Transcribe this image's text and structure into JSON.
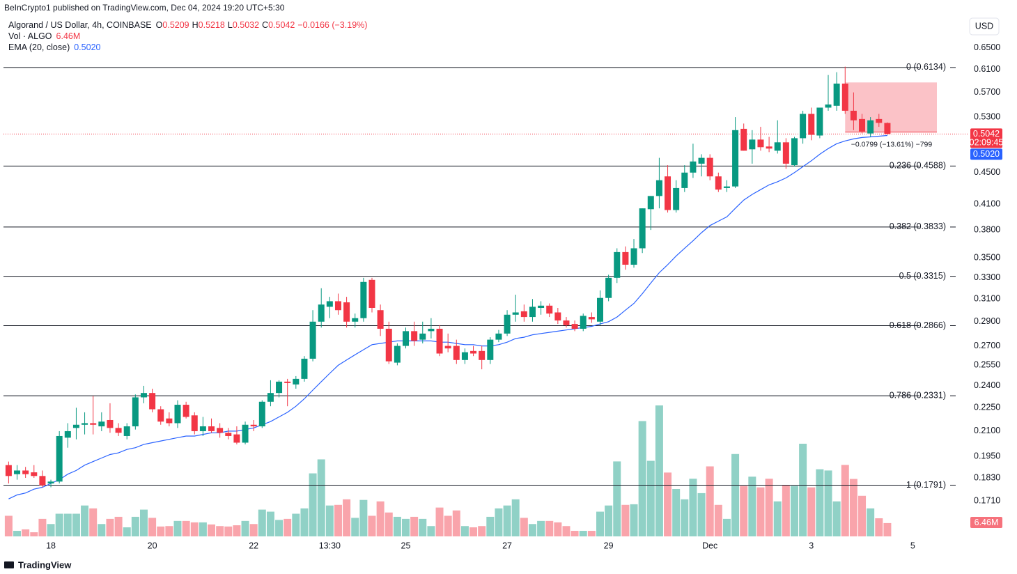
{
  "publisher": "BeInCrypto1 published on TradingView.com, Dec 04, 2024 19:20 UTC+5:30",
  "footer": "TradingView",
  "chart_data": {
    "type": "candlestick",
    "title": "Algorand / US Dollar, 4h, COINBASE",
    "legend_labels": [
      "O",
      "H",
      "L",
      "C"
    ],
    "legend_values": [
      0.5209,
      0.5218,
      0.5032,
      0.5042
    ],
    "change": "−0.0166 (−3.19%)",
    "volume_title": "Vol · ALGO",
    "volume_last": {
      "value": 6.46,
      "label": "6.46M"
    },
    "ema_title": "EMA (20, close)",
    "ema_last": {
      "value": 0.502,
      "label": "0.5020"
    },
    "currency": "USD",
    "countdown": "02:09:45",
    "categories": [
      null,
      null,
      null,
      null,
      null,
      "18",
      null,
      null,
      null,
      null,
      null,
      null,
      null,
      null,
      null,
      null,
      null,
      "20",
      null,
      null,
      null,
      null,
      null,
      null,
      null,
      null,
      null,
      null,
      null,
      "22",
      null,
      null,
      null,
      null,
      null,
      null,
      null,
      null,
      "13:30",
      null,
      null,
      null,
      null,
      null,
      null,
      null,
      null,
      "25",
      null,
      null,
      null,
      null,
      null,
      null,
      null,
      null,
      null,
      null,
      null,
      "27",
      null,
      null,
      null,
      null,
      null,
      null,
      null,
      null,
      null,
      null,
      null,
      "29",
      null,
      null,
      null,
      null,
      null,
      null,
      null,
      null,
      null,
      null,
      null,
      "Dec",
      null,
      null,
      null,
      null,
      null,
      null,
      null,
      null,
      null,
      null,
      null,
      "3",
      null,
      null,
      null,
      null,
      null,
      null,
      null,
      null,
      null,
      null,
      null,
      "5"
    ],
    "open": [
      0.19,
      0.185,
      0.187,
      0.186,
      0.184,
      0.18,
      0.181,
      0.206,
      0.212,
      0.214,
      0.215,
      0.213,
      0.217,
      0.212,
      0.207,
      0.213,
      0.232,
      0.235,
      0.224,
      0.218,
      0.215,
      0.227,
      0.22,
      0.21,
      0.213,
      0.212,
      0.209,
      0.208,
      0.203,
      0.214,
      0.213,
      0.229,
      0.235,
      0.243,
      0.241,
      0.245,
      0.26,
      0.29,
      0.303,
      0.308,
      0.307,
      0.29,
      0.293,
      0.328,
      0.3,
      0.284,
      0.257,
      0.27,
      0.282,
      0.275,
      0.282,
      0.284,
      0.27,
      0.27,
      0.259,
      0.266,
      0.266,
      0.259,
      0.275,
      0.28,
      0.296,
      0.299,
      0.294,
      0.302,
      0.304,
      0.298,
      0.291,
      0.288,
      0.284,
      0.294,
      0.29,
      0.311,
      0.33,
      0.356,
      0.343,
      0.36,
      0.404,
      0.42,
      0.445,
      0.403,
      0.43,
      0.45,
      0.462,
      0.47,
      0.445,
      0.43,
      0.432,
      0.512,
      0.482,
      0.496,
      0.486,
      0.48,
      0.492,
      0.46,
      0.498,
      0.535,
      0.502,
      0.545,
      0.548,
      0.585,
      0.54,
      0.527,
      0.505,
      0.527,
      0.5209,
      null,
      null,
      null
    ],
    "high": [
      0.192,
      0.19,
      0.189,
      0.19,
      0.187,
      0.182,
      0.21,
      0.215,
      0.225,
      0.222,
      0.233,
      0.222,
      0.228,
      0.215,
      0.215,
      0.234,
      0.24,
      0.238,
      0.226,
      0.222,
      0.23,
      0.229,
      0.222,
      0.219,
      0.218,
      0.215,
      0.212,
      0.213,
      0.216,
      0.217,
      0.23,
      0.244,
      0.244,
      0.245,
      0.247,
      0.262,
      0.3,
      0.32,
      0.312,
      0.315,
      0.312,
      0.297,
      0.33,
      0.33,
      0.305,
      0.29,
      0.272,
      0.285,
      0.29,
      0.29,
      0.293,
      0.287,
      0.28,
      0.275,
      0.268,
      0.27,
      0.27,
      0.277,
      0.283,
      0.3,
      0.314,
      0.305,
      0.31,
      0.308,
      0.306,
      0.302,
      0.294,
      0.291,
      0.297,
      0.298,
      0.318,
      0.333,
      0.36,
      0.362,
      0.37,
      0.405,
      0.42,
      0.47,
      0.46,
      0.44,
      0.46,
      0.49,
      0.475,
      0.475,
      0.45,
      0.44,
      0.53,
      0.52,
      0.51,
      0.515,
      0.5,
      0.525,
      0.498,
      0.5,
      0.54,
      0.545,
      0.545,
      0.6,
      0.605,
      0.615,
      0.57,
      0.535,
      0.53,
      0.535,
      0.5218,
      null,
      null,
      null
    ],
    "low": [
      0.18,
      0.182,
      0.183,
      0.183,
      0.178,
      0.178,
      0.18,
      0.2,
      0.205,
      0.208,
      0.208,
      0.21,
      0.209,
      0.207,
      0.205,
      0.211,
      0.228,
      0.222,
      0.214,
      0.213,
      0.212,
      0.218,
      0.208,
      0.207,
      0.209,
      0.206,
      0.205,
      0.202,
      0.202,
      0.21,
      0.212,
      0.226,
      0.232,
      0.226,
      0.238,
      0.243,
      0.258,
      0.285,
      0.293,
      0.296,
      0.285,
      0.285,
      0.29,
      0.298,
      0.278,
      0.256,
      0.255,
      0.268,
      0.27,
      0.272,
      0.276,
      0.262,
      0.265,
      0.256,
      0.256,
      0.262,
      0.252,
      0.256,
      0.273,
      0.278,
      0.29,
      0.29,
      0.29,
      0.296,
      0.294,
      0.288,
      0.285,
      0.282,
      0.282,
      0.289,
      0.287,
      0.308,
      0.325,
      0.338,
      0.34,
      0.355,
      0.38,
      0.405,
      0.4,
      0.4,
      0.425,
      0.443,
      0.445,
      0.44,
      0.425,
      0.425,
      0.43,
      0.48,
      0.462,
      0.48,
      0.478,
      0.476,
      0.455,
      0.458,
      0.49,
      0.495,
      0.498,
      0.54,
      0.54,
      0.535,
      0.51,
      0.505,
      0.5,
      0.515,
      0.5032,
      null,
      null,
      null
    ],
    "close": [
      0.184,
      0.187,
      0.185,
      0.184,
      0.179,
      0.181,
      0.207,
      0.21,
      0.214,
      0.215,
      0.214,
      0.216,
      0.212,
      0.209,
      0.213,
      0.232,
      0.235,
      0.224,
      0.216,
      0.215,
      0.227,
      0.219,
      0.21,
      0.213,
      0.21,
      0.209,
      0.207,
      0.203,
      0.214,
      0.213,
      0.229,
      0.235,
      0.243,
      0.242,
      0.245,
      0.26,
      0.29,
      0.305,
      0.308,
      0.3,
      0.29,
      0.293,
      0.326,
      0.302,
      0.284,
      0.258,
      0.27,
      0.282,
      0.274,
      0.28,
      0.284,
      0.264,
      0.268,
      0.259,
      0.265,
      0.264,
      0.259,
      0.275,
      0.28,
      0.296,
      0.298,
      0.294,
      0.303,
      0.304,
      0.297,
      0.291,
      0.287,
      0.284,
      0.295,
      0.292,
      0.311,
      0.33,
      0.356,
      0.343,
      0.36,
      0.405,
      0.42,
      0.44,
      0.403,
      0.43,
      0.45,
      0.465,
      0.47,
      0.445,
      0.428,
      0.432,
      0.51,
      0.48,
      0.496,
      0.485,
      0.483,
      0.492,
      0.462,
      0.498,
      0.535,
      0.503,
      0.545,
      0.55,
      0.585,
      0.54,
      0.525,
      0.508,
      0.525,
      0.521,
      0.5042,
      null,
      null,
      null
    ],
    "volume": [
      10,
      2.7,
      3.4,
      2,
      8.5,
      6,
      11,
      11,
      11,
      15,
      13.6,
      6,
      8.5,
      9.5,
      4.4,
      9.5,
      13,
      9,
      4.8,
      5,
      7.5,
      7.5,
      6.8,
      6.8,
      5.8,
      5,
      4.8,
      5.4,
      7.5,
      6,
      13,
      12,
      8,
      8.5,
      11,
      13.6,
      30.6,
      37.4,
      15,
      15.3,
      18,
      9,
      17.7,
      10,
      17,
      11.6,
      9.5,
      8.5,
      9.5,
      8.5,
      5,
      14,
      10,
      12.6,
      5,
      4.4,
      5,
      9.5,
      13.6,
      15,
      18,
      9,
      6,
      7.5,
      7.5,
      6.8,
      5,
      2.7,
      2.7,
      2.7,
      12,
      15,
      36.4,
      15.3,
      15.6,
      56,
      36.7,
      63.6,
      31,
      23,
      18,
      28,
      21,
      34,
      15.3,
      8.5,
      40,
      24.5,
      29,
      23.8,
      28,
      17,
      24.8,
      24.5,
      45,
      23.8,
      32.6,
      32,
      17,
      34.7,
      27.9,
      19.7,
      13.6,
      8.8,
      6.46,
      null,
      null,
      null
    ],
    "ema": [
      0.172,
      0.174,
      0.175,
      0.177,
      0.178,
      0.18,
      0.182,
      0.185,
      0.187,
      0.19,
      0.192,
      0.194,
      0.196,
      0.197,
      0.199,
      0.2,
      0.202,
      0.203,
      0.204,
      0.205,
      0.206,
      0.207,
      0.207,
      0.208,
      0.209,
      0.209,
      0.21,
      0.21,
      0.211,
      0.212,
      0.214,
      0.216,
      0.219,
      0.222,
      0.226,
      0.231,
      0.237,
      0.243,
      0.249,
      0.255,
      0.259,
      0.263,
      0.267,
      0.271,
      0.272,
      0.273,
      0.274,
      0.274,
      0.274,
      0.274,
      0.274,
      0.273,
      0.273,
      0.272,
      0.271,
      0.271,
      0.27,
      0.27,
      0.271,
      0.273,
      0.276,
      0.277,
      0.279,
      0.28,
      0.281,
      0.282,
      0.283,
      0.284,
      0.285,
      0.286,
      0.288,
      0.29,
      0.294,
      0.3,
      0.306,
      0.315,
      0.325,
      0.335,
      0.343,
      0.352,
      0.36,
      0.368,
      0.377,
      0.385,
      0.39,
      0.395,
      0.405,
      0.415,
      0.422,
      0.428,
      0.434,
      0.438,
      0.443,
      0.45,
      0.458,
      0.466,
      0.475,
      0.483,
      0.49,
      0.494,
      0.497,
      0.499,
      0.5,
      0.501,
      0.502,
      null,
      null,
      null
    ],
    "ylim": [
      0.154,
      0.711
    ],
    "log_scale": true,
    "yticks": [
      {
        "value": 0.65,
        "label": "0.6500"
      },
      {
        "value": 0.61,
        "label": "0.6100"
      },
      {
        "value": 0.57,
        "label": "0.5700"
      },
      {
        "value": 0.53,
        "label": "0.5300"
      },
      {
        "value": 0.45,
        "label": "0.4500"
      },
      {
        "value": 0.41,
        "label": "0.4100"
      },
      {
        "value": 0.38,
        "label": "0.3800"
      },
      {
        "value": 0.35,
        "label": "0.3500"
      },
      {
        "value": 0.33,
        "label": "0.3300"
      },
      {
        "value": 0.31,
        "label": "0.3100"
      },
      {
        "value": 0.29,
        "label": "0.2900"
      },
      {
        "value": 0.27,
        "label": "0.2700"
      },
      {
        "value": 0.255,
        "label": "0.2550"
      },
      {
        "value": 0.24,
        "label": "0.2400"
      },
      {
        "value": 0.225,
        "label": "0.2250"
      },
      {
        "value": 0.21,
        "label": "0.2100"
      },
      {
        "value": 0.195,
        "label": "0.1950"
      },
      {
        "value": 0.183,
        "label": "0.1830"
      },
      {
        "value": 0.171,
        "label": "0.1710"
      }
    ],
    "fib_levels": [
      {
        "value": 0.6134,
        "label": "0 (0.6134)"
      },
      {
        "value": 0.4588,
        "label": "0.236 (0.4588)"
      },
      {
        "value": 0.3833,
        "label": "0.382 (0.3833)"
      },
      {
        "value": 0.3315,
        "label": "0.5 (0.3315)"
      },
      {
        "value": 0.2866,
        "label": "0.618 (0.2866)"
      },
      {
        "value": 0.2331,
        "label": "0.786 (0.2331)"
      },
      {
        "value": 0.1791,
        "label": "1 (0.1791)"
      }
    ],
    "measure": {
      "from": 0.587,
      "to": 0.5071,
      "label": "−0.0799 (−13.61%) −799"
    },
    "colors": {
      "up": "#089981",
      "down": "#f23645",
      "ema": "#2962ff",
      "fib": "#131722"
    }
  }
}
